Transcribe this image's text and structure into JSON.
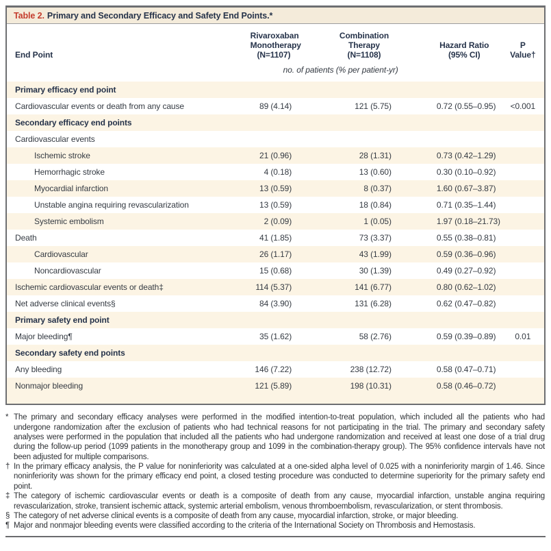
{
  "colors": {
    "accent_red": "#c43b2c",
    "stripe_beige": "#fcf4e4",
    "title_bar_beige": "#f4ebda",
    "border_gray": "#6d6e71",
    "heading_navy": "#26334a",
    "body_text": "#343a42"
  },
  "title": {
    "number": "Table 2.",
    "caption": "Primary and Secondary Efficacy and Safety End Points.*"
  },
  "columns": {
    "endpoint": "End Point",
    "rivaroxaban": "Rivaroxaban\nMonotherapy\n(N=1107)",
    "combination": "Combination\nTherapy\n(N=1108)",
    "hazard_ratio": "Hazard Ratio\n(95% CI)",
    "p_value": "P\nValue†",
    "units": "no. of patients (% per patient-yr)"
  },
  "rows": [
    {
      "label": "Primary efficacy end point",
      "section": true
    },
    {
      "label": "Cardiovascular events or death from any cause",
      "riva": "89 (4.14)",
      "combo": "121 (5.75)",
      "hr": "0.72 (0.55–0.95)",
      "p": "<0.001"
    },
    {
      "label": "Secondary efficacy end points",
      "section": true
    },
    {
      "label": "Cardiovascular events"
    },
    {
      "label": "Ischemic stroke",
      "indent": true,
      "riva": "21 (0.96)",
      "combo": "28 (1.31)",
      "hr": "0.73 (0.42–1.29)"
    },
    {
      "label": "Hemorrhagic stroke",
      "indent": true,
      "riva": "4 (0.18)",
      "combo": "13 (0.60)",
      "hr": "0.30 (0.10–0.92)"
    },
    {
      "label": "Myocardial infarction",
      "indent": true,
      "riva": "13 (0.59)",
      "combo": "8 (0.37)",
      "hr": "1.60 (0.67–3.87)"
    },
    {
      "label": "Unstable angina requiring revascularization",
      "indent": true,
      "riva": "13 (0.59)",
      "combo": "18 (0.84)",
      "hr": "0.71 (0.35–1.44)"
    },
    {
      "label": "Systemic embolism",
      "indent": true,
      "riva": "2 (0.09)",
      "combo": "1 (0.05)",
      "hr": "1.97 (0.18–21.73)"
    },
    {
      "label": "Death",
      "riva": "41 (1.85)",
      "combo": "73 (3.37)",
      "hr": "0.55 (0.38–0.81)"
    },
    {
      "label": "Cardiovascular",
      "indent": true,
      "riva": "26 (1.17)",
      "combo": "43 (1.99)",
      "hr": "0.59 (0.36–0.96)"
    },
    {
      "label": "Noncardiovascular",
      "indent": true,
      "riva": "15 (0.68)",
      "combo": "30 (1.39)",
      "hr": "0.49 (0.27–0.92)"
    },
    {
      "label": "Ischemic cardiovascular events or death‡",
      "riva": "114 (5.37)",
      "combo": "141 (6.77)",
      "hr": "0.80 (0.62–1.02)"
    },
    {
      "label": "Net adverse clinical events§",
      "riva": "84 (3.90)",
      "combo": "131 (6.28)",
      "hr": "0.62 (0.47–0.82)"
    },
    {
      "label": "Primary safety end point",
      "section": true
    },
    {
      "label": "Major bleeding¶",
      "riva": "35 (1.62)",
      "combo": "58 (2.76)",
      "hr": "0.59 (0.39–0.89)",
      "p": "0.01"
    },
    {
      "label": "Secondary safety end points",
      "section": true
    },
    {
      "label": "Any bleeding",
      "riva": "146 (7.22)",
      "combo": "238 (12.72)",
      "hr": "0.58 (0.47–0.71)"
    },
    {
      "label": "Nonmajor bleeding",
      "riva": "121 (5.89)",
      "combo": "198 (10.31)",
      "hr": "0.58 (0.46–0.72)"
    }
  ],
  "footnotes": [
    {
      "symbol": "*",
      "text": "The primary and secondary efficacy analyses were performed in the modified intention-to-treat population, which included all the patients who had undergone randomization after the exclusion of patients who had technical reasons for not participating in the trial. The primary and secondary safety analyses were performed in the population that included all the patients who had undergone randomization and received at least one dose of a trial drug during the follow-up period (1099 patients in the monotherapy group and 1099 in the combination-therapy group). The 95% confidence intervals have not been adjusted for multiple comparisons."
    },
    {
      "symbol": "†",
      "text": "In the primary efficacy analysis, the P value for noninferiority was calculated at a one-sided alpha level of 0.025 with a noninferiority margin of 1.46. Since noninferiority was shown for the primary efficacy end point, a closed testing procedure was conducted to determine superiority for the primary safety end point."
    },
    {
      "symbol": "‡",
      "text": "The category of ischemic cardiovascular events or death is a composite of death from any cause, myocardial infarction, unstable angina requiring revascularization, stroke, transient ischemic attack, systemic arterial embolism, venous thromboembolism, revascularization, or stent thrombosis."
    },
    {
      "symbol": "§",
      "text": "The category of net adverse clinical events is a composite of death from any cause, myocardial infarction, stroke, or major bleeding."
    },
    {
      "symbol": "¶",
      "text": "Major and nonmajor bleeding events were classified according to the criteria of the International Society on Thrombosis and Hemostasis."
    }
  ]
}
